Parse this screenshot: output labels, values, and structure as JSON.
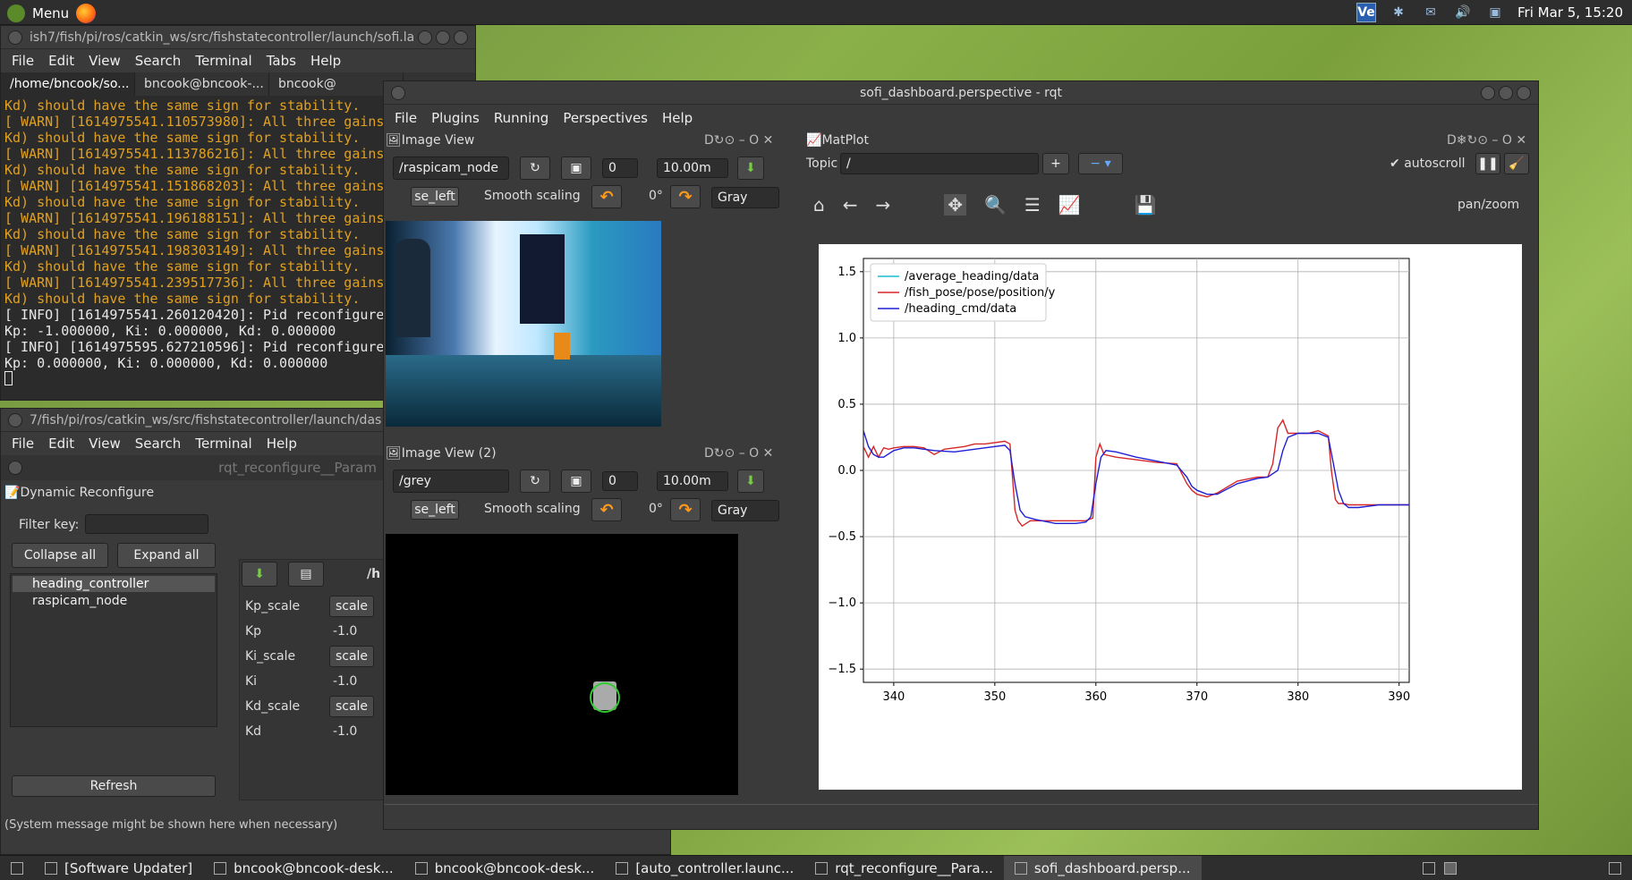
{
  "top_panel": {
    "menu_label": "Menu",
    "clock": "Fri Mar  5, 15:20",
    "tray_icons": [
      "ve-icon",
      "bluetooth-icon",
      "chat-icon",
      "volume-icon",
      "display-icon"
    ]
  },
  "term1": {
    "title": "ish7/fish/pi/ros/catkin_ws/src/fishstatecontroller/launch/sofi.la",
    "menu": [
      "File",
      "Edit",
      "View",
      "Search",
      "Terminal",
      "Tabs",
      "Help"
    ],
    "tabs": [
      "/home/bncook/so...",
      "bncook@bncook-...",
      "bncook@"
    ],
    "lines": [
      {
        "t": "Kd) should have the same sign for stability.",
        "c": "warn"
      },
      {
        "t": "[ WARN] [1614975541.110573980]: All three gains",
        "c": "warn"
      },
      {
        "t": "Kd) should have the same sign for stability.",
        "c": "warn"
      },
      {
        "t": "[ WARN] [1614975541.113786216]: All three gains",
        "c": "warn"
      },
      {
        "t": "Kd) should have the same sign for stability.",
        "c": "warn"
      },
      {
        "t": "[ WARN] [1614975541.151868203]: All three gains",
        "c": "warn"
      },
      {
        "t": "Kd) should have the same sign for stability.",
        "c": "warn"
      },
      {
        "t": "[ WARN] [1614975541.196188151]: All three gains",
        "c": "warn"
      },
      {
        "t": "Kd) should have the same sign for stability.",
        "c": "warn"
      },
      {
        "t": "[ WARN] [1614975541.198303149]: All three gains",
        "c": "warn"
      },
      {
        "t": "Kd) should have the same sign for stability.",
        "c": "warn"
      },
      {
        "t": "[ WARN] [1614975541.239517736]: All three gains",
        "c": "warn"
      },
      {
        "t": "Kd) should have the same sign for stability.",
        "c": "warn"
      },
      {
        "t": "[ INFO] [1614975541.260120420]: Pid reconfigure",
        "c": "info"
      },
      {
        "t": "Kp: -1.000000, Ki: 0.000000, Kd: 0.000000",
        "c": "info"
      },
      {
        "t": "[ INFO] [1614975595.627210596]: Pid reconfigure",
        "c": "info"
      },
      {
        "t": "Kp: 0.000000, Ki: 0.000000, Kd: 0.000000",
        "c": "info"
      }
    ]
  },
  "term2": {
    "title": "7/fish/pi/ros/catkin_ws/src/fishstatecontroller/launch/das",
    "menu": [
      "File",
      "Edit",
      "View",
      "Search",
      "Terminal",
      "Help"
    ],
    "reconf_title": "rqt_reconfigure__Param",
    "plugin_title": "Dynamic Reconfigure",
    "filter_label": "Filter key:",
    "collapse_all": "Collapse all",
    "expand_all": "Expand all",
    "nodes": [
      "heading_controller",
      "raspicam_node"
    ],
    "refresh": "Refresh",
    "path_label": "/h",
    "params": [
      {
        "name": "Kp_scale",
        "value": "scale"
      },
      {
        "name": "Kp",
        "value": "-1.0"
      },
      {
        "name": "Ki_scale",
        "value": "scale"
      },
      {
        "name": "Ki",
        "value": "-1.0"
      },
      {
        "name": "Kd_scale",
        "value": "scale"
      },
      {
        "name": "Kd",
        "value": "-1.0"
      }
    ],
    "status": "(System message might be shown here when necessary)"
  },
  "rqt": {
    "title": "sofi_dashboard.perspective - rqt",
    "menu": [
      "File",
      "Plugins",
      "Running",
      "Perspectives",
      "Help"
    ],
    "image_view1": {
      "title": "Image View",
      "topic": "/raspicam_node",
      "num": "0",
      "dist": "10.00m",
      "mouse_topic": "se_left",
      "smooth": "Smooth scaling",
      "rotation": "0°",
      "colormap": "Gray"
    },
    "image_view2": {
      "title": "Image View (2)",
      "topic": "/grey",
      "num": "0",
      "dist": "10.00m",
      "mouse_topic": "se_left",
      "smooth": "Smooth scaling",
      "rotation": "0°",
      "colormap": "Gray"
    },
    "matplot": {
      "title": "MatPlot",
      "topic_label": "Topic",
      "topic_value": "/",
      "autoscroll": "autoscroll",
      "mode": "pan/zoom"
    }
  },
  "chart_data": {
    "type": "line",
    "title": "",
    "xlabel": "",
    "ylabel": "",
    "xlim": [
      337,
      391
    ],
    "ylim": [
      -1.6,
      1.6
    ],
    "xticks": [
      340,
      350,
      360,
      370,
      380,
      390
    ],
    "yticks": [
      1.5,
      1.0,
      0.5,
      0.0,
      -0.5,
      -1.0,
      -1.5
    ],
    "yticklabels": [
      "1.5",
      "1.0",
      "0.5",
      "0.0",
      "−0.5",
      "−1.0",
      "−1.5"
    ],
    "grid": true,
    "legend_position": "top-left",
    "series": [
      {
        "name": "/average_heading/data",
        "color": "#17becf",
        "x": [],
        "y": []
      },
      {
        "name": "/fish_pose/pose/position/y",
        "color": "#d62728",
        "x": [
          337,
          337.5,
          338,
          338.5,
          339,
          339.5,
          340,
          341,
          342,
          343,
          344,
          345,
          346,
          347,
          348,
          349,
          350,
          351,
          351.5,
          352,
          352.3,
          352.7,
          353.5,
          355,
          357,
          359,
          359.7,
          360,
          360.4,
          360.8,
          362,
          364,
          366,
          368,
          369,
          369.5,
          370,
          371,
          372,
          374,
          376,
          377,
          377.5,
          378,
          378.5,
          379,
          380,
          381,
          382,
          383,
          383.3,
          383.7,
          384,
          384.5,
          385,
          386,
          388,
          390,
          391
        ],
        "y": [
          0.18,
          0.1,
          0.18,
          0.1,
          0.17,
          0.16,
          0.17,
          0.18,
          0.18,
          0.17,
          0.12,
          0.16,
          0.17,
          0.18,
          0.2,
          0.2,
          0.21,
          0.22,
          0.2,
          -0.3,
          -0.38,
          -0.42,
          -0.38,
          -0.38,
          -0.38,
          -0.38,
          -0.36,
          0.1,
          0.2,
          0.12,
          0.1,
          0.08,
          0.06,
          0.05,
          -0.1,
          -0.15,
          -0.18,
          -0.2,
          -0.17,
          -0.08,
          -0.05,
          -0.05,
          0.05,
          0.32,
          0.38,
          0.28,
          0.28,
          0.28,
          0.3,
          0.26,
          0.0,
          -0.22,
          -0.25,
          -0.25,
          -0.26,
          -0.26,
          -0.26,
          -0.26,
          -0.26
        ]
      },
      {
        "name": "/heading_cmd/data",
        "color": "#1f1fd6",
        "x": [
          337,
          337.5,
          338,
          338.5,
          339,
          340,
          341,
          342,
          344,
          346,
          348,
          350,
          351,
          351.5,
          352,
          352.5,
          353,
          354,
          356,
          358,
          359,
          359.5,
          360,
          360.5,
          361,
          362,
          364,
          366,
          368,
          369,
          369.5,
          370,
          371,
          372,
          374,
          376,
          377,
          378,
          378.5,
          379,
          380,
          382,
          383,
          383.5,
          384,
          384.5,
          385,
          386,
          388,
          390,
          391
        ],
        "y": [
          0.3,
          0.18,
          0.12,
          0.1,
          0.1,
          0.15,
          0.17,
          0.17,
          0.15,
          0.14,
          0.16,
          0.18,
          0.19,
          0.15,
          -0.1,
          -0.3,
          -0.35,
          -0.37,
          -0.4,
          -0.4,
          -0.39,
          -0.35,
          -0.1,
          0.1,
          0.15,
          0.14,
          0.1,
          0.07,
          0.04,
          -0.05,
          -0.12,
          -0.15,
          -0.18,
          -0.18,
          -0.1,
          -0.06,
          -0.05,
          0.0,
          0.15,
          0.25,
          0.28,
          0.28,
          0.25,
          0.05,
          -0.15,
          -0.25,
          -0.28,
          -0.28,
          -0.26,
          -0.26,
          -0.26
        ]
      }
    ]
  },
  "taskbar": {
    "items": [
      {
        "label": "[Software Updater]",
        "active": false
      },
      {
        "label": "bncook@bncook-desk...",
        "active": false
      },
      {
        "label": "bncook@bncook-desk...",
        "active": false
      },
      {
        "label": "[auto_controller.launc...",
        "active": false
      },
      {
        "label": "rqt_reconfigure__Para...",
        "active": false
      },
      {
        "label": "sofi_dashboard.persp...",
        "active": true
      }
    ]
  }
}
